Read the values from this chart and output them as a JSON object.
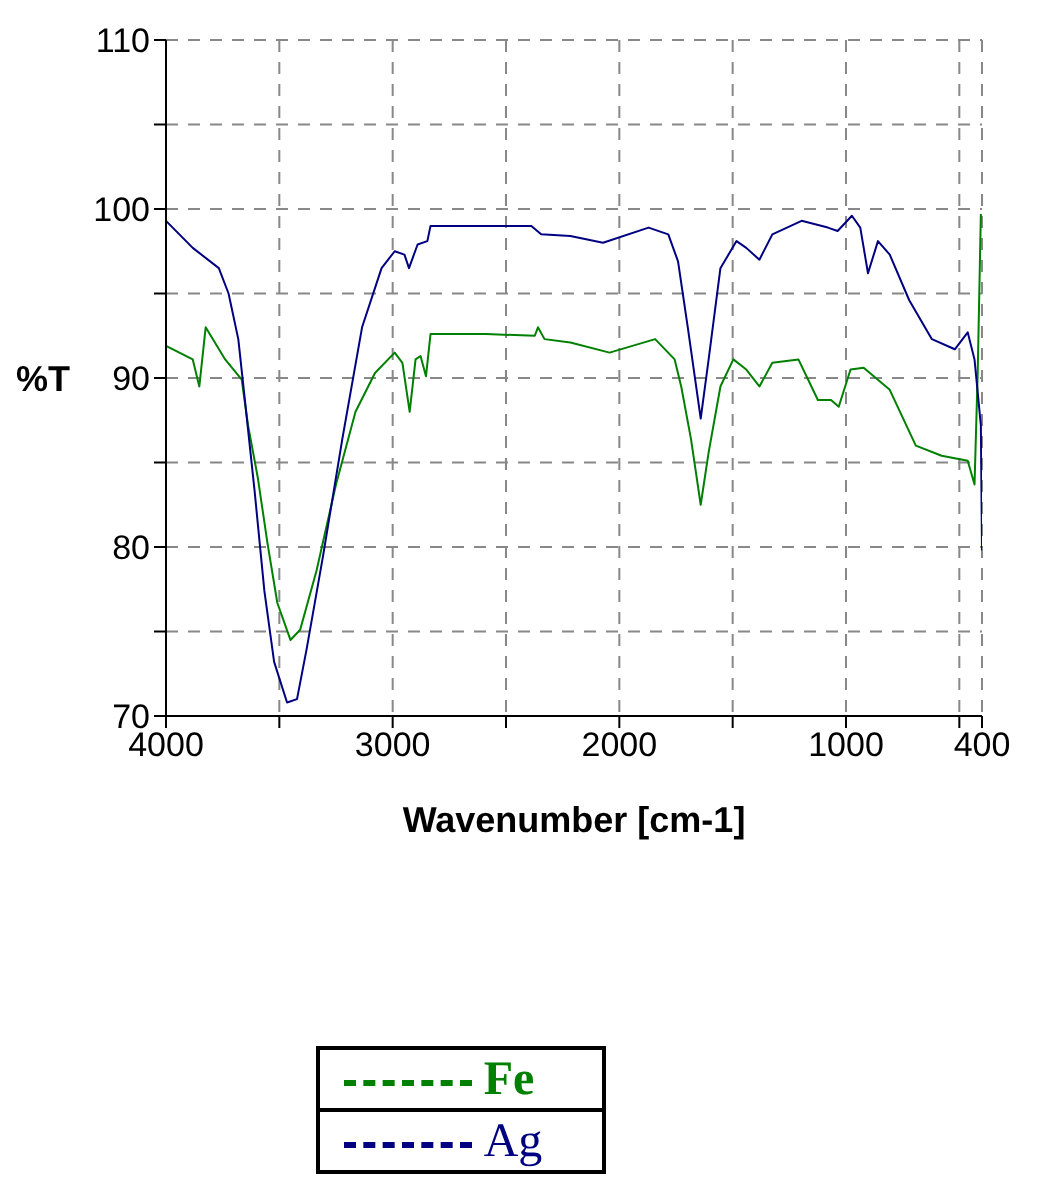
{
  "chart_data": {
    "type": "line",
    "xlabel": "Wavenumber [cm-1]",
    "ylabel": "%T",
    "xlim": [
      4000,
      400
    ],
    "xticks": [
      4000,
      {
        "value": 3500,
        "label": null
      },
      3000,
      {
        "value": 2500,
        "label": null
      },
      2000,
      {
        "value": 1500,
        "label": null
      },
      1000,
      {
        "value": 500,
        "label": null
      },
      400
    ],
    "ylim": [
      70,
      110
    ],
    "yticks": [
      70,
      {
        "value": 75,
        "label": null
      },
      80,
      {
        "value": 85,
        "label": null
      },
      90,
      {
        "value": 95,
        "label": null
      },
      100,
      {
        "value": 105,
        "label": null
      },
      110
    ],
    "grid": true,
    "legend": "bottom",
    "series": [
      {
        "name": "Fe",
        "color": "#008000",
        "x": [
          4000,
          3882,
          3853,
          3825,
          3739,
          3666,
          3638,
          3595,
          3552,
          3509,
          3451,
          3408,
          3336,
          3250,
          3164,
          3078,
          2991,
          2957,
          2925,
          2899,
          2877,
          2853,
          2833,
          2589,
          2373,
          2359,
          2330,
          2216,
          2043,
          1842,
          1756,
          1727,
          1684,
          1641,
          1606,
          1554,
          1497,
          1440,
          1382,
          1325,
          1210,
          1124,
          1066,
          1032,
          980,
          922,
          807,
          692,
          578,
          463,
          433,
          419,
          405
        ],
        "values": [
          91.9,
          91.1,
          89.5,
          93.0,
          91.1,
          89.9,
          87.2,
          84.1,
          80.2,
          76.7,
          74.5,
          75.1,
          78.6,
          83.7,
          88.0,
          90.3,
          91.5,
          90.9,
          88.0,
          91.1,
          91.3,
          90.1,
          92.6,
          92.6,
          92.5,
          93.0,
          92.3,
          92.1,
          91.5,
          92.3,
          91.1,
          89.5,
          86.4,
          82.5,
          85.6,
          89.5,
          91.1,
          90.5,
          89.5,
          90.9,
          91.1,
          88.7,
          88.7,
          88.3,
          90.5,
          90.6,
          89.3,
          86.0,
          85.4,
          85.1,
          83.7,
          90.3,
          99.7
        ]
      },
      {
        "name": "Ag",
        "color": "#000080",
        "x": [
          4000,
          3882,
          3767,
          3724,
          3681,
          3652,
          3609,
          3566,
          3523,
          3466,
          3422,
          3379,
          3308,
          3222,
          3135,
          3049,
          2991,
          2948,
          2928,
          2890,
          2847,
          2833,
          2589,
          2388,
          2345,
          2216,
          2072,
          1871,
          1784,
          1741,
          1698,
          1641,
          1606,
          1554,
          1483,
          1440,
          1382,
          1325,
          1196,
          1080,
          1037,
          974,
          937,
          903,
          859,
          807,
          721,
          621,
          520,
          463,
          433,
          405,
          400
        ],
        "values": [
          99.3,
          97.7,
          96.5,
          95.0,
          92.3,
          88.7,
          83.3,
          77.4,
          73.2,
          70.8,
          71.0,
          74.0,
          79.4,
          86.4,
          93.0,
          96.5,
          97.5,
          97.3,
          96.5,
          97.9,
          98.1,
          99.0,
          99.0,
          99.0,
          98.5,
          98.4,
          98.0,
          98.9,
          98.5,
          96.9,
          93.0,
          87.6,
          91.1,
          96.5,
          98.1,
          97.7,
          97.0,
          98.5,
          99.3,
          98.9,
          98.7,
          99.6,
          98.9,
          96.2,
          98.1,
          97.3,
          94.6,
          92.3,
          91.7,
          92.7,
          91.1,
          87.2,
          79.8
        ]
      }
    ]
  }
}
